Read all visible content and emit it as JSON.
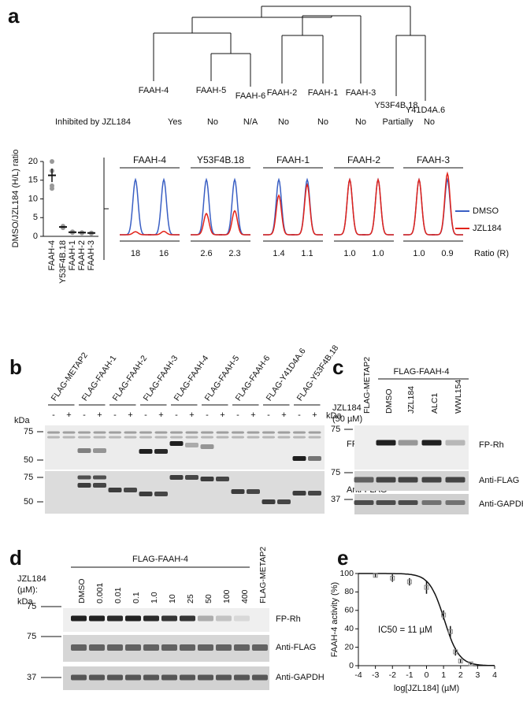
{
  "a": {
    "label": "a",
    "tree_leaves": [
      "FAAH-4",
      "FAAH-5",
      "FAAH-6",
      "FAAH-2",
      "FAAH-1",
      "FAAH-3",
      "Y53F4B.18",
      "Y41D4A.6"
    ],
    "inhibited_label": "Inhibited by JZL184",
    "inhibited": [
      "Yes",
      "No",
      "N/A",
      "No",
      "No",
      "No",
      "Partially",
      "No"
    ],
    "scatter": {
      "type": "scatter",
      "ylabel": "DMSO/JZL184 (H/L) ratio",
      "categories": [
        "FAAH-4",
        "Y53F4B.18",
        "FAAH-1",
        "FAAH-2",
        "FAAH-3"
      ],
      "values": [
        16.3,
        2.5,
        1.1,
        1.0,
        0.9
      ],
      "errors": [
        1.8,
        0.2,
        0.1,
        0.1,
        0.1
      ],
      "replicates": [
        [
          20,
          17.5,
          13.5,
          12.8
        ],
        [
          2.7,
          2.3
        ],
        [
          1.2,
          1.0
        ],
        [
          1.0,
          0.9
        ],
        [
          0.9,
          0.8
        ]
      ],
      "ylim": [
        0,
        20
      ],
      "yticks": [
        0,
        5,
        10,
        15,
        20
      ],
      "color": "#111111",
      "replicate_color": "#999999"
    },
    "traces": {
      "groups": [
        "FAAH-4",
        "Y53F4B.18",
        "FAAH-1",
        "FAAH-2",
        "FAAH-3"
      ],
      "ratios": [
        [
          18,
          16
        ],
        [
          2.6,
          2.3
        ],
        [
          1.4,
          1.1
        ],
        [
          1.0,
          1.0
        ],
        [
          1.0,
          0.9
        ]
      ],
      "ratio_labels": [
        [
          "18",
          "16"
        ],
        [
          "2.6",
          "2.3"
        ],
        [
          "1.4",
          "1.1"
        ],
        [
          "1.0",
          "1.0"
        ],
        [
          "1.0",
          "0.9"
        ]
      ],
      "ratio_title": "Ratio (R)",
      "series": [
        {
          "name": "DMSO",
          "color": "#3a5fc4"
        },
        {
          "name": "JZL184",
          "color": "#e2231a"
        }
      ]
    }
  },
  "b": {
    "label": "b",
    "lanes": [
      "FLAG-METAP2",
      "FLAG-FAAH-1",
      "FLAG-FAAH-2",
      "FLAG-FAAH-3",
      "FLAG-FAAH-4",
      "FLAG-FAAH-5",
      "FLAG-FAAH-6",
      "FLAG-Y41D4A.6",
      "FLAG-Y53F4B.18"
    ],
    "treatment_signs": [
      "-",
      "+"
    ],
    "treatment": "JZL184",
    "treatment_dose": "(50 µM)",
    "kda": "kDa",
    "markers": [
      "75",
      "50",
      "75",
      "50"
    ],
    "blots": [
      "FP-Rh",
      "Anti-FLAG"
    ]
  },
  "c": {
    "label": "c",
    "control": "FLAG-METAP2",
    "group": "FLAG-FAAH-4",
    "lanes": [
      "DMSO",
      "JZL184",
      "ALC1",
      "WWL154"
    ],
    "kda": "kDa",
    "markers": [
      "75",
      "75",
      "37"
    ],
    "blots": [
      "FP-Rh",
      "Anti-FLAG",
      "Anti-GAPDH"
    ]
  },
  "d": {
    "label": "d",
    "group": "FLAG-FAAH-4",
    "treatment": [
      "JZL184",
      "(µM):"
    ],
    "lanes": [
      "DMSO",
      "0.001",
      "0.01",
      "0.1",
      "1.0",
      "10",
      "25",
      "50",
      "100",
      "400"
    ],
    "control": "FLAG-METAP2",
    "kda": "kDa",
    "markers": [
      "75",
      "75",
      "37"
    ],
    "blots": [
      "FP-Rh",
      "Anti-FLAG",
      "Anti-GAPDH"
    ]
  },
  "e": {
    "label": "e",
    "type": "scatter",
    "xlabel": "log[JZL184] (µM)",
    "ylabel": "FAAH-4 activity (%)",
    "x": [
      -3,
      -2,
      -1,
      0,
      1,
      1.4,
      1.7,
      2,
      2.6
    ],
    "values": [
      98,
      95,
      91,
      85,
      55,
      37,
      15,
      5,
      2
    ],
    "errors": [
      2,
      4,
      4,
      7,
      5,
      6,
      4,
      2,
      1
    ],
    "xlim": [
      -4,
      4
    ],
    "xticks": [
      -4,
      -3,
      -2,
      -1,
      0,
      1,
      2,
      3,
      4
    ],
    "ylim": [
      0,
      100
    ],
    "yticks": [
      0,
      20,
      40,
      60,
      80,
      100
    ],
    "annotation": "IC50 = 11 µM",
    "ic50": 11,
    "color": "#111111"
  }
}
